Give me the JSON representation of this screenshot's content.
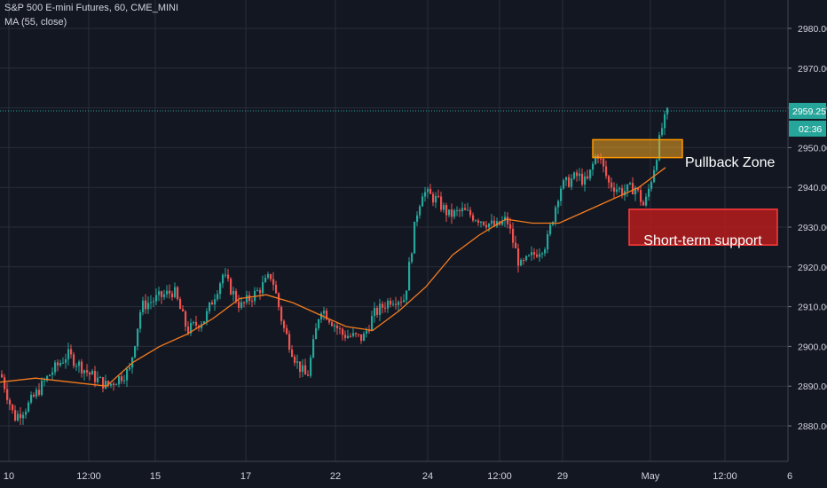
{
  "header": {
    "title": "S&P 500 E-mini Futures, 60, CME_MINI",
    "indicator": "MA (55, close)"
  },
  "colors": {
    "background": "#131722",
    "grid": "#2a2e39",
    "text": "#d1d4dc",
    "up": "#26a69a",
    "down": "#ef5350",
    "ma": "#f57c1f",
    "price_badge": "#26a69a",
    "zone_fill": "#f5a623",
    "zone_border": "#ff9800",
    "support_fill": "#b71c1c",
    "support_border": "#ff3b3b"
  },
  "price_badge": {
    "price": "2959.25",
    "countdown": "02:36"
  },
  "annotations": {
    "pullback_label": "Pullback Zone",
    "support_label": "Short-term support"
  },
  "chart_data": {
    "type": "candlestick",
    "title": "S&P 500 E-mini Futures, 60, CME_MINI",
    "y_axis": {
      "ticks": [
        2880,
        2890,
        2900,
        2910,
        2920,
        2930,
        2940,
        2950,
        2960,
        2970,
        2980
      ],
      "range": [
        2878,
        2984
      ]
    },
    "x_axis": {
      "ticks": [
        "10",
        "12:00",
        "15",
        "17",
        "22",
        "24",
        "12:00",
        "29",
        "May",
        "12:00",
        "6"
      ]
    },
    "last_price": 2959.25,
    "zones": [
      {
        "label": "Pullback Zone",
        "price_low": 2947.5,
        "price_high": 2952
      },
      {
        "label": "Short-term support",
        "price_low": 2925.5,
        "price_high": 2934.5
      }
    ],
    "price_path": [
      [
        0,
        2893
      ],
      [
        15,
        2882
      ],
      [
        30,
        2885
      ],
      [
        55,
        2893
      ],
      [
        75,
        2898
      ],
      [
        100,
        2893
      ],
      [
        120,
        2890
      ],
      [
        145,
        2894
      ],
      [
        158,
        2910
      ],
      [
        175,
        2912
      ],
      [
        195,
        2914
      ],
      [
        210,
        2904
      ],
      [
        230,
        2907
      ],
      [
        250,
        2918
      ],
      [
        270,
        2910
      ],
      [
        290,
        2914
      ],
      [
        305,
        2918
      ],
      [
        318,
        2905
      ],
      [
        333,
        2896
      ],
      [
        345,
        2892
      ],
      [
        360,
        2910
      ],
      [
        385,
        2903
      ],
      [
        408,
        2902
      ],
      [
        420,
        2908
      ],
      [
        440,
        2912
      ],
      [
        455,
        2912
      ],
      [
        468,
        2933
      ],
      [
        475,
        2939
      ],
      [
        490,
        2937
      ],
      [
        505,
        2933
      ],
      [
        520,
        2934
      ],
      [
        540,
        2932
      ],
      [
        558,
        2930
      ],
      [
        570,
        2932
      ],
      [
        585,
        2920
      ],
      [
        600,
        2923
      ],
      [
        615,
        2926
      ],
      [
        630,
        2940
      ],
      [
        650,
        2943
      ],
      [
        660,
        2941
      ],
      [
        672,
        2949
      ],
      [
        685,
        2941
      ],
      [
        700,
        2939
      ],
      [
        715,
        2940
      ],
      [
        725,
        2935
      ],
      [
        735,
        2944
      ],
      [
        745,
        2955
      ],
      [
        752,
        2959.25
      ]
    ],
    "ma_path": [
      [
        0,
        2891
      ],
      [
        40,
        2892
      ],
      [
        80,
        2891
      ],
      [
        120,
        2890
      ],
      [
        150,
        2896
      ],
      [
        180,
        2900
      ],
      [
        210,
        2903
      ],
      [
        240,
        2907
      ],
      [
        270,
        2912
      ],
      [
        300,
        2913
      ],
      [
        330,
        2911
      ],
      [
        360,
        2908
      ],
      [
        390,
        2905
      ],
      [
        420,
        2904
      ],
      [
        450,
        2909
      ],
      [
        480,
        2915
      ],
      [
        510,
        2923
      ],
      [
        540,
        2928
      ],
      [
        570,
        2932
      ],
      [
        600,
        2931
      ],
      [
        630,
        2931
      ],
      [
        660,
        2934
      ],
      [
        690,
        2937
      ],
      [
        720,
        2940
      ],
      [
        750,
        2945
      ]
    ]
  }
}
